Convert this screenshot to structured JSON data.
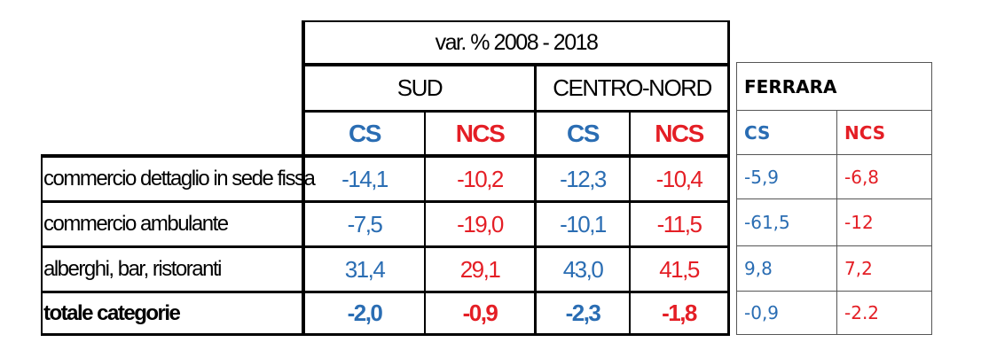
{
  "header": {
    "title": "var. % 2008 - 2018",
    "groups": [
      "SUD",
      "CENTRO-NORD"
    ],
    "subheaders": [
      "CS",
      "NCS",
      "CS",
      "NCS"
    ]
  },
  "rows": [
    {
      "label": "commercio dettaglio in sede fissa",
      "values": [
        "-14,1",
        "-10,2",
        "-12,3",
        "-10,4"
      ]
    },
    {
      "label": "commercio ambulante",
      "values": [
        "-7,5",
        "-19,0",
        "-10,1",
        "-11,5"
      ]
    },
    {
      "label": "alberghi, bar, ristoranti",
      "values": [
        "31,4",
        "29,1",
        "43,0",
        "41,5"
      ]
    },
    {
      "label": "totale categorie",
      "values": [
        "-2,0",
        "-0,9",
        "-2,3",
        "-1,8"
      ]
    }
  ],
  "ferrara": {
    "title": "FERRARA",
    "subheaders": [
      "CS",
      "NCS"
    ],
    "rows": [
      [
        "-5,9",
        "-6,8"
      ],
      [
        "-61,5",
        "-12"
      ],
      [
        "9,8",
        "7,2"
      ],
      [
        "-0,9",
        "-2.2"
      ]
    ]
  },
  "colors": {
    "cs": "#2a6db3",
    "ncs": "#e41e25",
    "border": "#000000"
  }
}
